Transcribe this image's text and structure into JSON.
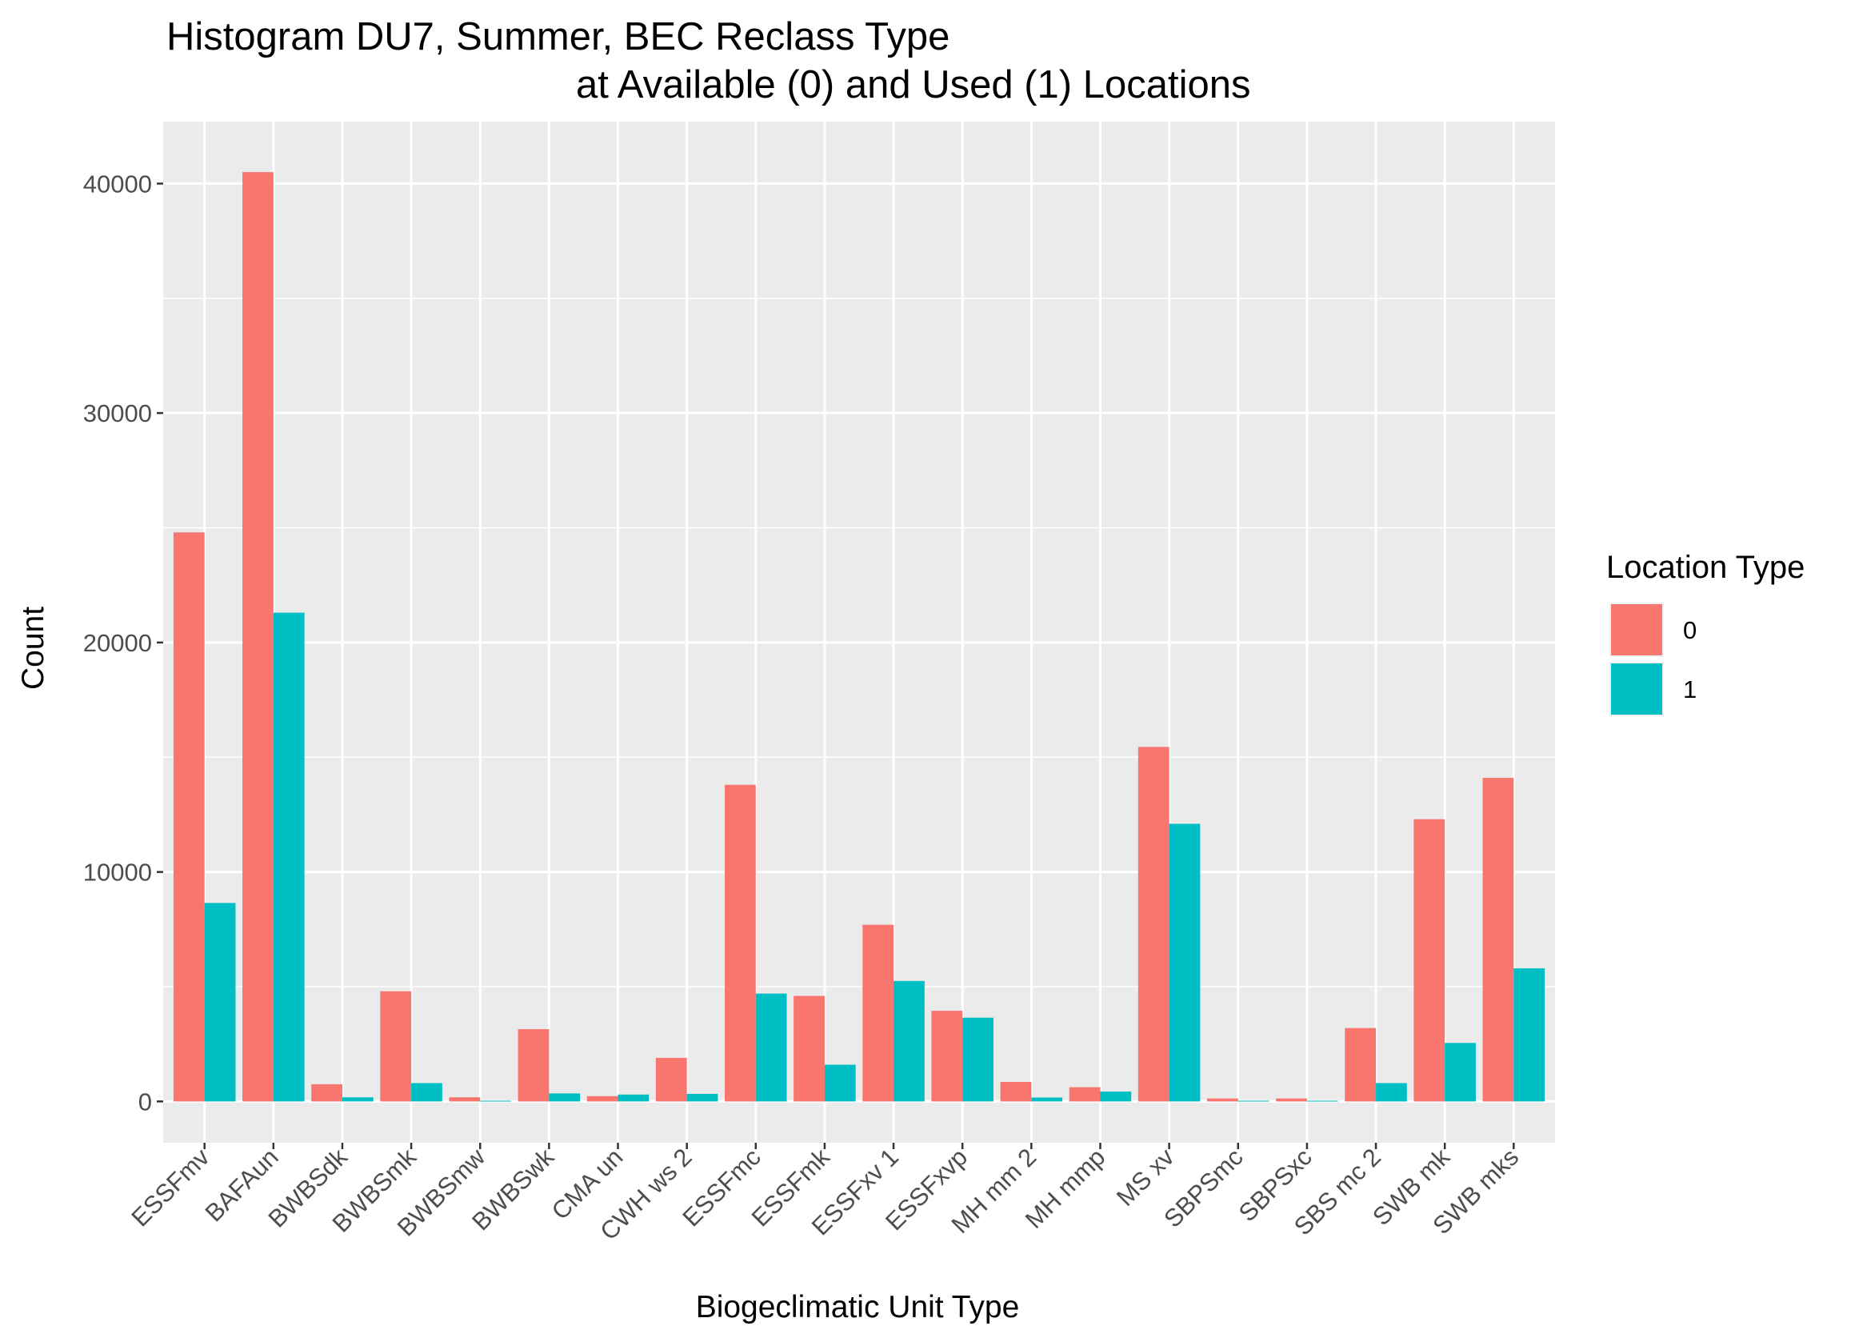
{
  "chart_data": {
    "type": "bar",
    "title": "Histogram DU7, Summer, BEC Reclass Type",
    "subtitle": "at Available (0) and Used (1) Locations",
    "xlabel": "Biogeclimatic Unit Type",
    "ylabel": "Count",
    "ylim": [
      -1800,
      42700
    ],
    "yticks": [
      0,
      10000,
      20000,
      30000,
      40000
    ],
    "ytick_labels": [
      "0",
      "10000",
      "20000",
      "30000",
      "40000"
    ],
    "grid": true,
    "legend": {
      "title": "Location Type",
      "position": "right",
      "entries": [
        "0",
        "1"
      ]
    },
    "categories": [
      "ESSFmv",
      "BAFAun",
      "BWBSdk",
      "BWBSmk",
      "BWBSmw",
      "BWBSwk",
      "CMA un",
      "CWH ws 2",
      "ESSFmc",
      "ESSFmk",
      "ESSFxv 1",
      "ESSFxvp",
      "MH  mm 2",
      "MH  mmp",
      "MS  xv",
      "SBPSmc",
      "SBPSxc",
      "SBS mc 2",
      "SWB mk",
      "SWB mks"
    ],
    "series": [
      {
        "name": "0",
        "color": "#F8766D",
        "values": [
          24800,
          40500,
          750,
          4800,
          180,
          3150,
          230,
          1900,
          13800,
          4600,
          7700,
          3950,
          850,
          620,
          15450,
          130,
          130,
          3200,
          12300,
          14100
        ]
      },
      {
        "name": "1",
        "color": "#00BFC4",
        "values": [
          8650,
          21300,
          180,
          800,
          30,
          350,
          300,
          330,
          4700,
          1600,
          5250,
          3650,
          170,
          430,
          12100,
          30,
          30,
          800,
          2550,
          5800
        ]
      }
    ]
  }
}
